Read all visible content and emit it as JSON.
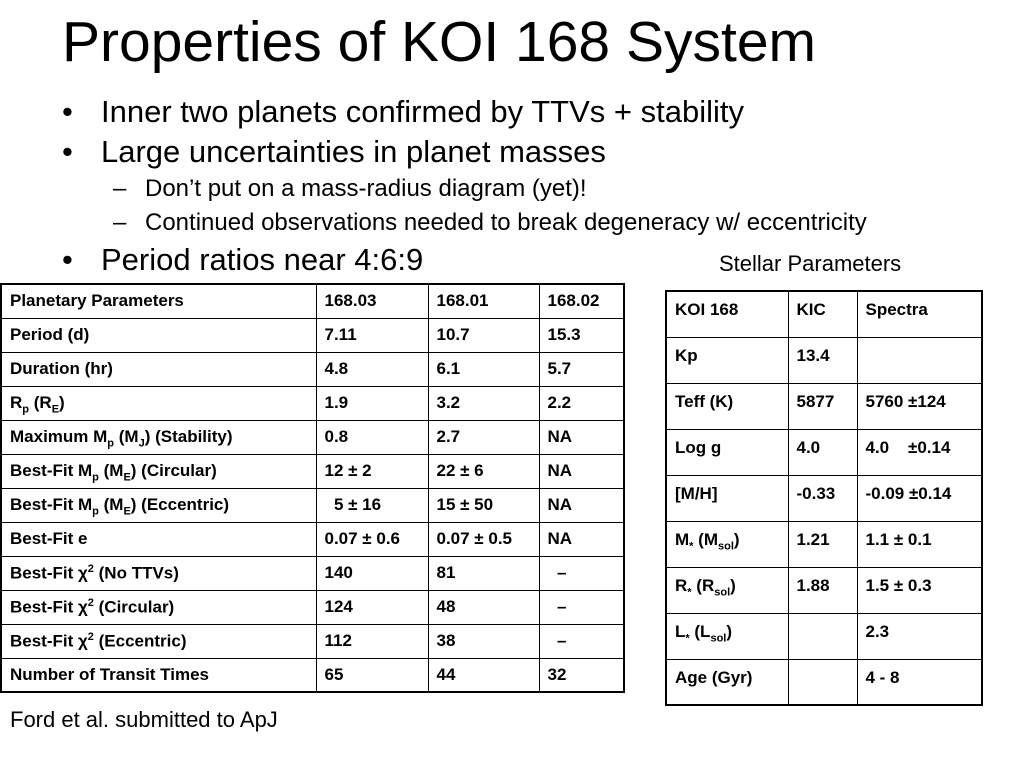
{
  "title": "Properties of KOI 168 System",
  "bullets": [
    {
      "marker": "•",
      "text": "Inner two planets confirmed by TTVs + stability"
    },
    {
      "marker": "•",
      "text": "Large uncertainties in planet masses"
    },
    {
      "marker": "–",
      "text": "Don’t put on a mass-radius diagram (yet)!"
    },
    {
      "marker": "–",
      "text": "Continued observations needed to break degeneracy w/ eccentricity"
    },
    {
      "marker": "•",
      "text": "Period ratios near 4:6:9"
    }
  ],
  "stellar_caption": "Stellar Parameters",
  "planet_table": {
    "header": [
      "Planetary Parameters",
      "168.03",
      "168.01",
      "168.02"
    ],
    "rows": [
      {
        "label": "Period (d)",
        "values": [
          "7.11",
          "10.7",
          "15.3"
        ]
      },
      {
        "label": "Duration (hr)",
        "values": [
          "4.8",
          "6.1",
          "5.7"
        ]
      },
      {
        "label_parts": [
          "R",
          "p",
          " (R",
          "E",
          ")"
        ],
        "values": [
          "1.9",
          "3.2",
          "2.2"
        ]
      },
      {
        "label_parts": [
          "Maximum M",
          "p",
          " (M",
          "J",
          ") (Stability)"
        ],
        "values": [
          "0.8",
          "2.7",
          "NA"
        ]
      },
      {
        "label_parts": [
          "Best-Fit M",
          "p",
          " (M",
          "E",
          ")    (Circular)"
        ],
        "values": [
          "12 ± 2",
          "22 ± 6",
          "NA"
        ]
      },
      {
        "label_parts": [
          "Best-Fit M",
          "p",
          " (M",
          "E",
          ")    (Eccentric)"
        ],
        "values": [
          "  5 ± 16",
          "15 ± 50",
          "NA"
        ]
      },
      {
        "label": "Best-Fit e",
        "values": [
          "0.07 ± 0.6",
          "0.07 ± 0.5",
          "NA"
        ]
      },
      {
        "label_parts": [
          "Best-Fit χ",
          "2",
          " (No TTVs)"
        ],
        "values": [
          "140",
          "81",
          "  –"
        ]
      },
      {
        "label_parts": [
          "Best-Fit χ",
          "2",
          " (Circular)"
        ],
        "values": [
          "124",
          "48",
          "  –"
        ]
      },
      {
        "label_parts": [
          "Best-Fit χ",
          "2",
          " (Eccentric)"
        ],
        "values": [
          "112",
          "38",
          "  –"
        ]
      },
      {
        "label": "Number of Transit Times",
        "values": [
          "65",
          "44",
          "32"
        ]
      }
    ]
  },
  "stellar_table": {
    "header": [
      "KOI 168",
      "KIC",
      "Spectra"
    ],
    "rows": [
      {
        "label": "Kp",
        "values": [
          "13.4",
          ""
        ]
      },
      {
        "label": "Teff (K)",
        "values": [
          "5877",
          "5760 ±124"
        ]
      },
      {
        "label": "Log g",
        "values": [
          "4.0",
          "4.0    ±0.14"
        ]
      },
      {
        "label": "[M/H]",
        "values": [
          "-0.33",
          "-0.09 ±0.14"
        ]
      },
      {
        "label_parts": [
          "M",
          "*",
          " (M",
          "sol",
          ")"
        ],
        "values": [
          "1.21",
          "1.1 ± 0.1"
        ]
      },
      {
        "label_parts": [
          "R",
          "*",
          " (R",
          "sol",
          ")"
        ],
        "values": [
          "1.88",
          "1.5 ± 0.3"
        ]
      },
      {
        "label_parts": [
          "L",
          "*",
          " (L",
          "sol",
          ")"
        ],
        "values": [
          "",
          "2.3"
        ]
      },
      {
        "label": "Age (Gyr)",
        "values": [
          "",
          "4 - 8"
        ]
      }
    ]
  },
  "footnote": "Ford et al. submitted to ApJ"
}
